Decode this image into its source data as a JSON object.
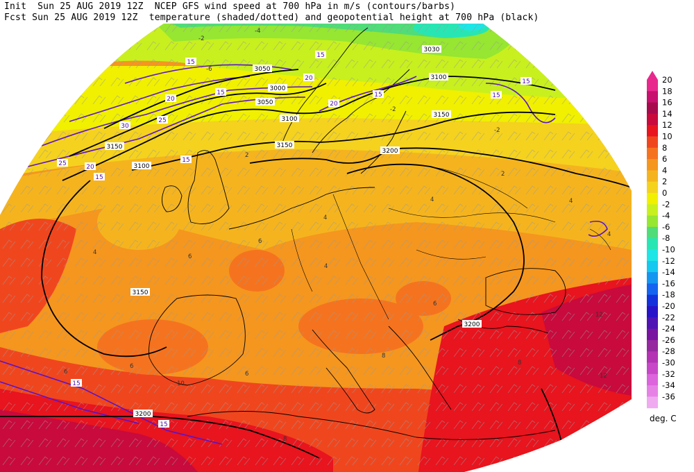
{
  "header": {
    "line1": "Init  Sun 25 AUG 2019 12Z  NCEP GFS wind speed at 700 hPa in m/s (contours/barbs)",
    "line2": "Fcst Sun 25 AUG 2019 12Z  temperature (shaded/dotted) and geopotential height at 700 hPa (black)"
  },
  "legend": {
    "units": "deg. C",
    "ticks": [
      "20",
      "18",
      "16",
      "14",
      "12",
      "10",
      "8",
      "6",
      "4",
      "2",
      "0",
      "-2",
      "-4",
      "-6",
      "-8",
      "-10",
      "-12",
      "-14",
      "-16",
      "-18",
      "-20",
      "-22",
      "-24",
      "-26",
      "-28",
      "-30",
      "-32",
      "-34",
      "-36"
    ],
    "colors": [
      "#e8288c",
      "#c8106e",
      "#a80a4e",
      "#c80a3c",
      "#e8141e",
      "#f0461e",
      "#f5731e",
      "#f5961e",
      "#f5b41e",
      "#f5d21e",
      "#f0f000",
      "#c8f01e",
      "#96e632",
      "#50dc78",
      "#28e6b4",
      "#1ee6e6",
      "#14c8f0",
      "#1496f0",
      "#1464f0",
      "#1432dc",
      "#2814c8",
      "#5014b4",
      "#7814a0",
      "#9628a0",
      "#b432b4",
      "#c846c8",
      "#dc64dc",
      "#e682e6",
      "#f0aaf0"
    ]
  },
  "map": {
    "height_contours": [
      "3000",
      "3050",
      "3100",
      "3150",
      "3200"
    ],
    "height_labels": [
      {
        "text": "3030"
      },
      {
        "text": "3050"
      },
      {
        "text": "3000"
      },
      {
        "text": "3050"
      },
      {
        "text": "3100"
      },
      {
        "text": "3150"
      },
      {
        "text": "3200"
      },
      {
        "text": "3150"
      },
      {
        "text": "3100"
      },
      {
        "text": "3150"
      },
      {
        "text": "3100"
      },
      {
        "text": "3150"
      },
      {
        "text": "3200"
      },
      {
        "text": "3200"
      }
    ],
    "wind_labels": [
      {
        "text": "15"
      },
      {
        "text": "20"
      },
      {
        "text": "15"
      },
      {
        "text": "20"
      },
      {
        "text": "15"
      },
      {
        "text": "15"
      },
      {
        "text": "25"
      },
      {
        "text": "30"
      },
      {
        "text": "25"
      },
      {
        "text": "20"
      },
      {
        "text": "15"
      },
      {
        "text": "15"
      },
      {
        "text": "20"
      },
      {
        "text": "15"
      },
      {
        "text": "15"
      },
      {
        "text": "15"
      },
      {
        "text": "15"
      }
    ],
    "temp_labels": [
      {
        "text": "-4"
      },
      {
        "text": "-2"
      },
      {
        "text": "-2"
      },
      {
        "text": "2"
      },
      {
        "text": "4"
      },
      {
        "text": "2"
      },
      {
        "text": "4"
      },
      {
        "text": "6"
      },
      {
        "text": "6"
      },
      {
        "text": "4"
      },
      {
        "text": "4"
      },
      {
        "text": "6"
      },
      {
        "text": "6"
      },
      {
        "text": "8"
      },
      {
        "text": "8"
      },
      {
        "text": "6"
      },
      {
        "text": "4"
      },
      {
        "text": "6"
      },
      {
        "text": "10"
      },
      {
        "text": "12"
      },
      {
        "text": "12"
      },
      {
        "text": "8"
      },
      {
        "text": "-6"
      },
      {
        "text": "-2"
      },
      {
        "text": "4"
      }
    ]
  }
}
